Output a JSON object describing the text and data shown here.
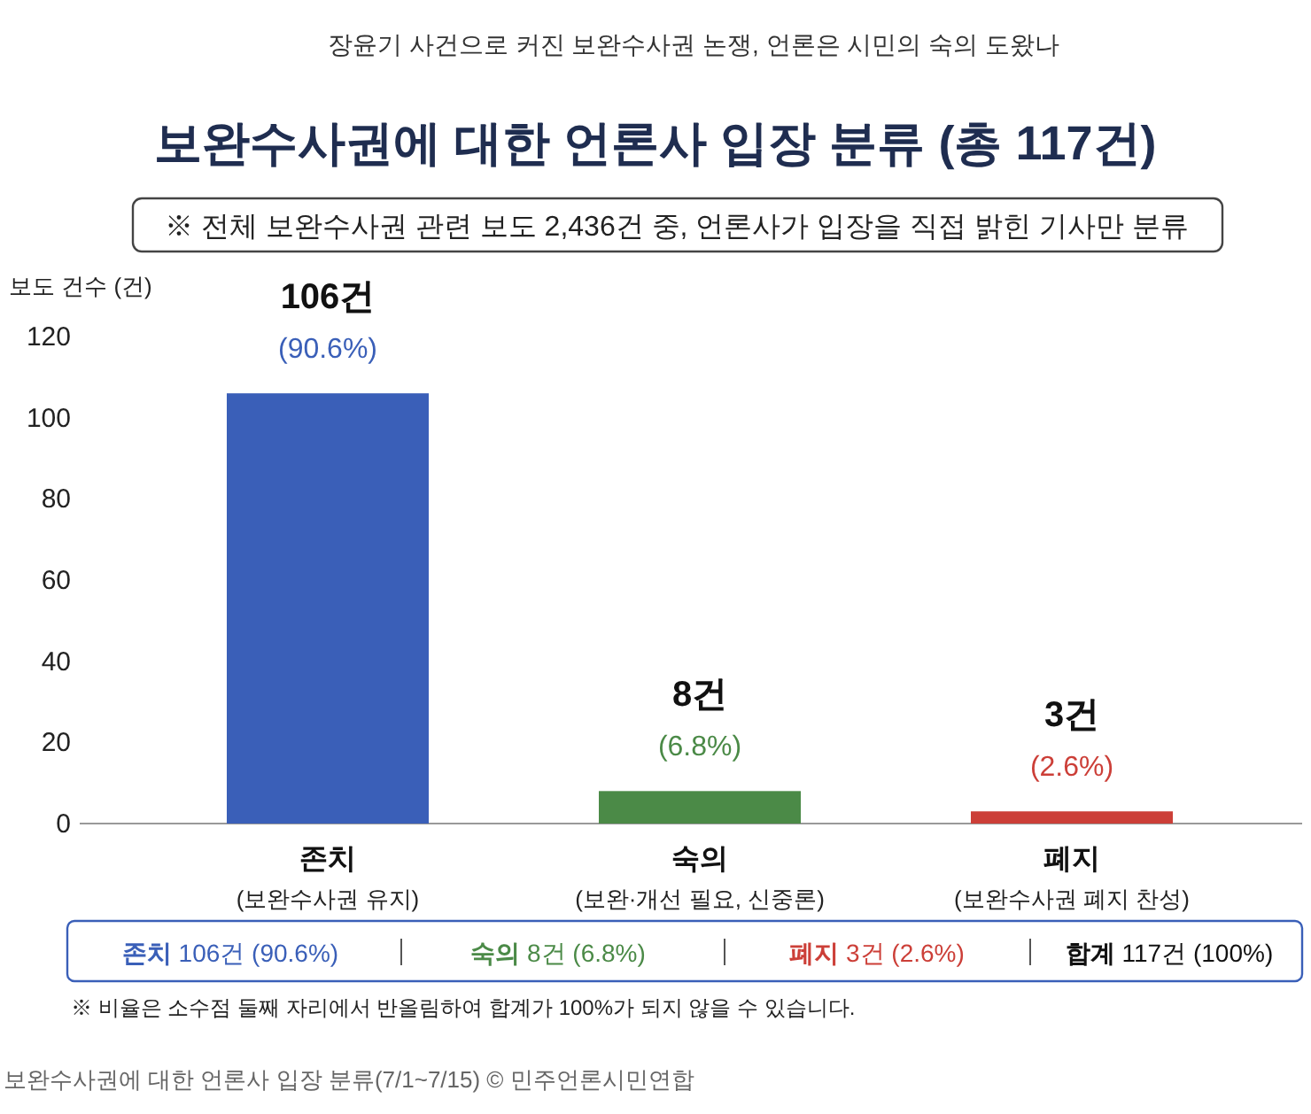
{
  "chart_data": {
    "type": "bar",
    "title": "보완수사권에 대한 언론사 입장 분류 (총 117건)",
    "subtitle": "※ 전체 보완수사권 관련 보도 2,436건 중, 언론사가 입장을 직접 밝힌 기사만 분류",
    "ylabel": "보도 건수 (건)",
    "categories": [
      "존치\n(보완수사권 유지)",
      "숙의\n(보완·개선 필요, 신중론)",
      "폐지\n(보완수사권 폐지 찬성)"
    ],
    "values": [
      106,
      8,
      3
    ],
    "colors": [
      "#3a5fb8",
      "#4b8a47",
      "#cc3f38"
    ],
    "value_labels": [
      "106건",
      "8건",
      "3건"
    ],
    "ylim": [
      0,
      120
    ],
    "yticks": [
      0,
      20,
      40,
      60,
      80,
      100,
      120
    ],
    "grid": false,
    "annotations": [
      {
        "text": "(90.6%)",
        "x": "존치\n(보완수사권 유지)",
        "y": 106
      },
      {
        "text": "(6.8%)",
        "x": "숙의\n(보완·개선 필요, 신중론)",
        "y": 8
      },
      {
        "text": "(2.6%)",
        "x": "폐지\n(보완수사권 폐지 찬성)",
        "y": 3
      },
      "존치 106건 (90.6%)",
      "숙의 8건 (6.8%)",
      "폐지 3건 (2.6%)",
      "합계 117건 (100%)",
      "장윤기 사건으로 커진 보완수사권 논쟁, 언론은 시민의 숙의 도왔나",
      "※ 비율은 소수점 둘째 자리에서 반올림하여 합계가 100%가 되지 않을 수 있습니다.",
      "보완수사권에 대한 언론사 입장 분류(7/1~7/15) © 민주언론시민연합"
    ]
  }
}
